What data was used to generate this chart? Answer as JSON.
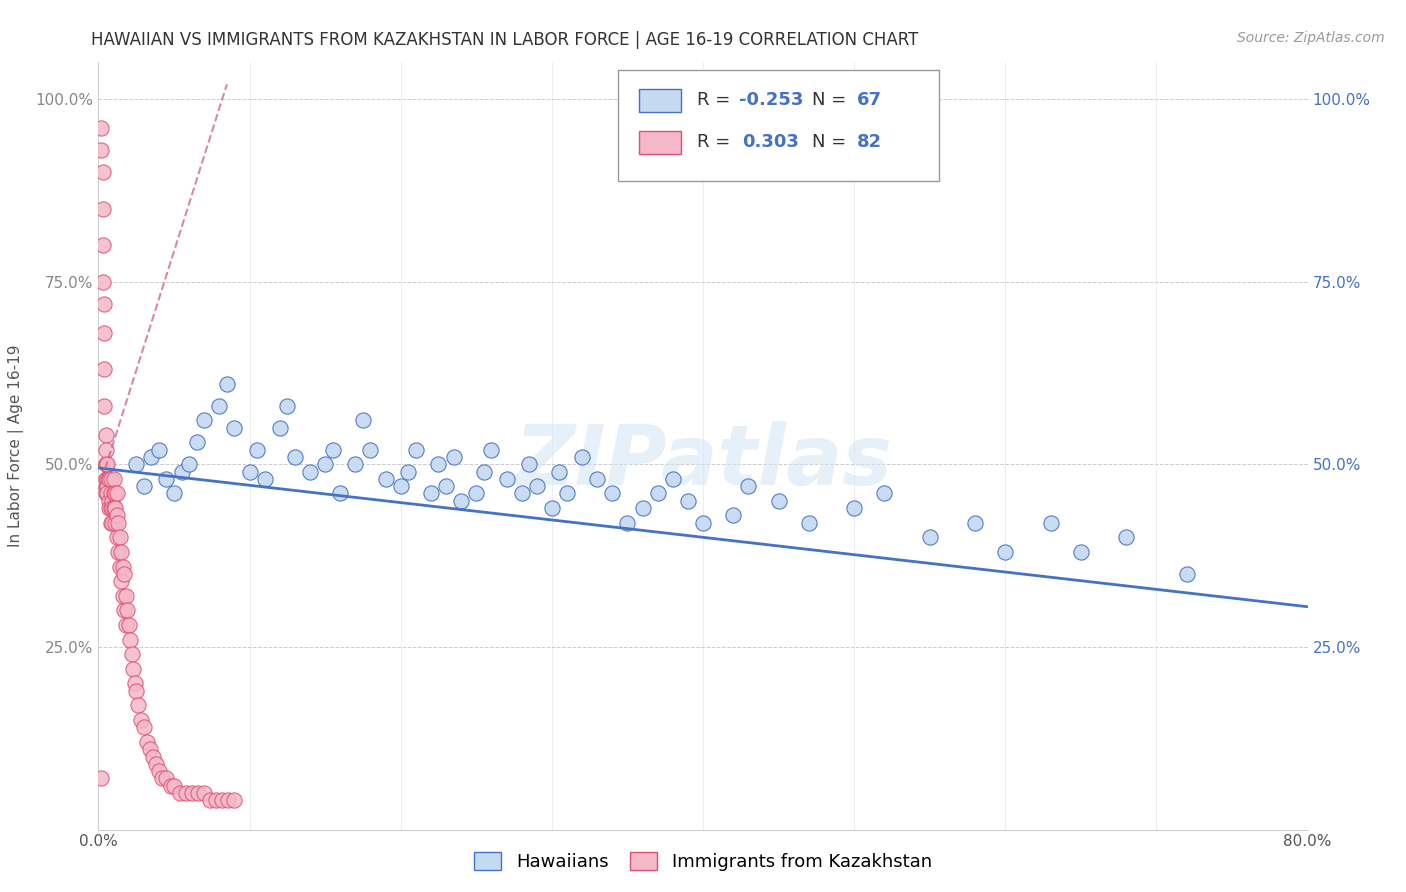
{
  "title": "HAWAIIAN VS IMMIGRANTS FROM KAZAKHSTAN IN LABOR FORCE | AGE 16-19 CORRELATION CHART",
  "source": "Source: ZipAtlas.com",
  "ylabel": "In Labor Force | Age 16-19",
  "xmin": 0.0,
  "xmax": 0.8,
  "ymin": 0.0,
  "ymax": 1.05,
  "xtick_vals": [
    0.0,
    0.1,
    0.2,
    0.3,
    0.4,
    0.5,
    0.6,
    0.7,
    0.8
  ],
  "xtick_labels": [
    "0.0%",
    "",
    "",
    "",
    "",
    "",
    "",
    "",
    "80.0%"
  ],
  "ytick_vals": [
    0.0,
    0.25,
    0.5,
    0.75,
    1.0
  ],
  "ytick_labels_left": [
    "",
    "25.0%",
    "50.0%",
    "75.0%",
    "100.0%"
  ],
  "ytick_labels_right": [
    "",
    "25.0%",
    "50.0%",
    "75.0%",
    "100.0%"
  ],
  "legend_r_blue": "-0.253",
  "legend_n_blue": "67",
  "legend_r_pink": "0.303",
  "legend_n_pink": "82",
  "watermark": "ZIPatlas",
  "blue_fill": "#c5d9f1",
  "blue_edge": "#4472c4",
  "pink_fill": "#f4b8c8",
  "pink_edge": "#e05070",
  "blue_line": "#4472c4",
  "pink_line": "#d06080",
  "blue_line_x0": 0.0,
  "blue_line_x1": 0.8,
  "blue_line_y0": 0.495,
  "blue_line_y1": 0.305,
  "pink_line_x0": 0.0,
  "pink_line_x1": 0.085,
  "pink_line_y0": 0.465,
  "pink_line_y1": 1.02,
  "blue_x": [
    0.025,
    0.03,
    0.035,
    0.04,
    0.045,
    0.05,
    0.055,
    0.06,
    0.065,
    0.07,
    0.08,
    0.085,
    0.09,
    0.1,
    0.105,
    0.11,
    0.12,
    0.125,
    0.13,
    0.14,
    0.15,
    0.155,
    0.16,
    0.17,
    0.175,
    0.18,
    0.19,
    0.2,
    0.205,
    0.21,
    0.22,
    0.225,
    0.23,
    0.235,
    0.24,
    0.25,
    0.255,
    0.26,
    0.27,
    0.28,
    0.285,
    0.29,
    0.3,
    0.305,
    0.31,
    0.32,
    0.33,
    0.34,
    0.35,
    0.36,
    0.37,
    0.38,
    0.39,
    0.4,
    0.42,
    0.43,
    0.45,
    0.47,
    0.5,
    0.52,
    0.55,
    0.58,
    0.6,
    0.63,
    0.65,
    0.68,
    0.72
  ],
  "blue_y": [
    0.5,
    0.47,
    0.51,
    0.52,
    0.48,
    0.46,
    0.49,
    0.5,
    0.53,
    0.56,
    0.58,
    0.61,
    0.55,
    0.49,
    0.52,
    0.48,
    0.55,
    0.58,
    0.51,
    0.49,
    0.5,
    0.52,
    0.46,
    0.5,
    0.56,
    0.52,
    0.48,
    0.47,
    0.49,
    0.52,
    0.46,
    0.5,
    0.47,
    0.51,
    0.45,
    0.46,
    0.49,
    0.52,
    0.48,
    0.46,
    0.5,
    0.47,
    0.44,
    0.49,
    0.46,
    0.51,
    0.48,
    0.46,
    0.42,
    0.44,
    0.46,
    0.48,
    0.45,
    0.42,
    0.43,
    0.47,
    0.45,
    0.42,
    0.44,
    0.46,
    0.4,
    0.42,
    0.38,
    0.42,
    0.38,
    0.4,
    0.35
  ],
  "pink_x": [
    0.002,
    0.002,
    0.003,
    0.003,
    0.003,
    0.003,
    0.004,
    0.004,
    0.004,
    0.004,
    0.005,
    0.005,
    0.005,
    0.005,
    0.005,
    0.005,
    0.006,
    0.006,
    0.006,
    0.006,
    0.007,
    0.007,
    0.007,
    0.007,
    0.008,
    0.008,
    0.008,
    0.008,
    0.009,
    0.009,
    0.009,
    0.01,
    0.01,
    0.01,
    0.011,
    0.011,
    0.011,
    0.012,
    0.012,
    0.012,
    0.013,
    0.013,
    0.014,
    0.014,
    0.015,
    0.015,
    0.016,
    0.016,
    0.017,
    0.017,
    0.018,
    0.018,
    0.019,
    0.02,
    0.021,
    0.022,
    0.023,
    0.024,
    0.025,
    0.026,
    0.028,
    0.03,
    0.032,
    0.034,
    0.036,
    0.038,
    0.04,
    0.042,
    0.045,
    0.048,
    0.05,
    0.054,
    0.058,
    0.062,
    0.066,
    0.07,
    0.074,
    0.078,
    0.082,
    0.086,
    0.09,
    0.002
  ],
  "pink_y": [
    0.96,
    0.93,
    0.9,
    0.85,
    0.8,
    0.75,
    0.72,
    0.68,
    0.63,
    0.58,
    0.54,
    0.5,
    0.48,
    0.46,
    0.5,
    0.52,
    0.48,
    0.5,
    0.47,
    0.46,
    0.45,
    0.48,
    0.44,
    0.48,
    0.46,
    0.44,
    0.42,
    0.48,
    0.45,
    0.44,
    0.42,
    0.46,
    0.48,
    0.44,
    0.46,
    0.42,
    0.44,
    0.46,
    0.43,
    0.4,
    0.42,
    0.38,
    0.4,
    0.36,
    0.38,
    0.34,
    0.36,
    0.32,
    0.35,
    0.3,
    0.32,
    0.28,
    0.3,
    0.28,
    0.26,
    0.24,
    0.22,
    0.2,
    0.19,
    0.17,
    0.15,
    0.14,
    0.12,
    0.11,
    0.1,
    0.09,
    0.08,
    0.07,
    0.07,
    0.06,
    0.06,
    0.05,
    0.05,
    0.05,
    0.05,
    0.05,
    0.04,
    0.04,
    0.04,
    0.04,
    0.04,
    0.07
  ]
}
